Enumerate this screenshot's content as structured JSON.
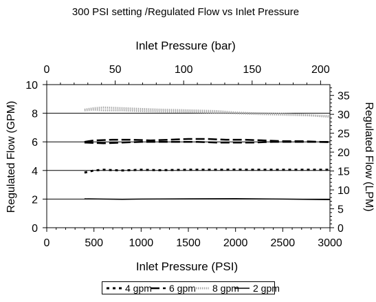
{
  "chart_data": {
    "type": "line",
    "title": "300 PSI setting /Regulated Flow vs Inlet Pressure",
    "xlabel": "Inlet Pressure (PSI)",
    "ylabel": "Regulated Flow (GPM)",
    "x2label": "Inlet Pressure (bar)",
    "y2label": "Regulated Flow (LPM)",
    "xlim": [
      0,
      3000
    ],
    "ylim": [
      0,
      10
    ],
    "x2lim": [
      0,
      206.84
    ],
    "y2lim": [
      0,
      37.854
    ],
    "xticks": [
      0,
      500,
      1000,
      1500,
      2000,
      2500,
      3000
    ],
    "yticks": [
      0,
      2,
      4,
      6,
      8,
      10
    ],
    "x2ticks": [
      0,
      50,
      100,
      150,
      200
    ],
    "y2ticks": [
      0,
      5,
      10,
      15,
      20,
      25,
      30,
      35
    ],
    "grid": "horizontal",
    "legend_position": "bottom",
    "series": [
      {
        "name": "4 gpm",
        "style": "short-dash",
        "x": [
          400,
          500,
          600,
          800,
          1000,
          1200,
          1500,
          1800,
          2000,
          2200,
          2500,
          2800,
          3000
        ],
        "y": [
          3.85,
          4.0,
          4.05,
          4.0,
          4.05,
          4.02,
          4.05,
          4.05,
          4.06,
          4.05,
          4.05,
          4.05,
          4.05
        ]
      },
      {
        "name": "6 gpm",
        "style": "long-dash",
        "x": [
          400,
          500,
          700,
          900,
          1100,
          1300,
          1500,
          1700,
          1900,
          2100,
          2300,
          2500,
          2700,
          2900,
          3000
        ],
        "y": [
          6.0,
          6.1,
          6.15,
          6.15,
          6.1,
          6.15,
          6.2,
          6.2,
          6.15,
          6.15,
          6.1,
          6.05,
          6.05,
          6.0,
          6.0
        ]
      },
      {
        "name": "6 gpm",
        "style": "long-dash",
        "x": [
          400,
          600,
          800,
          1000,
          1200,
          1400,
          1600,
          1800,
          2000,
          2200,
          2400,
          2600,
          2800,
          3000
        ],
        "y": [
          5.95,
          5.9,
          5.95,
          6.0,
          6.0,
          6.0,
          6.0,
          5.95,
          5.95,
          5.95,
          6.0,
          6.0,
          6.0,
          5.98
        ]
      },
      {
        "name": "8 gpm",
        "style": "dotted-light",
        "x": [
          400,
          500,
          600,
          800,
          1000,
          1200,
          1500,
          1800,
          2000,
          2200,
          2500,
          2800,
          3000
        ],
        "y": [
          8.25,
          8.35,
          8.4,
          8.35,
          8.3,
          8.25,
          8.2,
          8.15,
          8.05,
          8.0,
          7.95,
          7.85,
          7.75
        ]
      },
      {
        "name": "8 gpm",
        "style": "dotted-light",
        "x": [
          400,
          500,
          600,
          800,
          1000,
          1200,
          1500,
          1800,
          2000,
          2200,
          2500,
          2800,
          3000
        ],
        "y": [
          8.2,
          8.25,
          8.2,
          8.2,
          8.15,
          8.12,
          8.1,
          8.05,
          8.0,
          7.95,
          7.9,
          7.85,
          7.8
        ]
      },
      {
        "name": "2 gpm",
        "style": "solid",
        "x": [
          400,
          600,
          800,
          1000,
          1500,
          2000,
          2500,
          3000
        ],
        "y": [
          2.02,
          2.0,
          1.98,
          2.0,
          2.02,
          2.03,
          2.0,
          1.96
        ]
      }
    ],
    "legend": [
      {
        "label": "4 gpm",
        "style": "short-dash"
      },
      {
        "label": "6 gpm",
        "style": "long-dash"
      },
      {
        "label": "8 gpm",
        "style": "dotted-light"
      },
      {
        "label": "2 gpm",
        "style": "solid"
      }
    ],
    "colors": {
      "line": "#000000",
      "light": "#aaaaaa",
      "grid": "#000000"
    }
  }
}
